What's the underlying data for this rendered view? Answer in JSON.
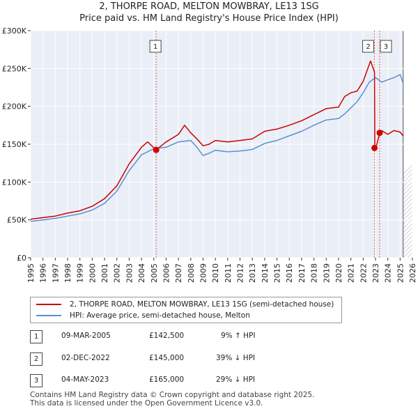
{
  "chart_data": {
    "type": "line",
    "title": "2, THORPE ROAD, MELTON MOWBRAY, LE13 1SG",
    "subtitle": "Price paid vs. HM Land Registry's House Price Index (HPI)",
    "xlabel": "",
    "ylabel": "",
    "xlim": [
      1995,
      2026
    ],
    "ylim": [
      0,
      300000
    ],
    "x_ticks": [
      1995,
      1996,
      1997,
      1998,
      1999,
      2000,
      2001,
      2002,
      2003,
      2004,
      2005,
      2006,
      2007,
      2008,
      2009,
      2010,
      2011,
      2012,
      2013,
      2014,
      2015,
      2016,
      2017,
      2018,
      2019,
      2020,
      2021,
      2022,
      2023,
      2024,
      2025,
      2026
    ],
    "y_ticks": [
      {
        "value": 0,
        "label": "£0"
      },
      {
        "value": 50000,
        "label": "£50K"
      },
      {
        "value": 100000,
        "label": "£100K"
      },
      {
        "value": 150000,
        "label": "£150K"
      },
      {
        "value": 200000,
        "label": "£200K"
      },
      {
        "value": 250000,
        "label": "£250K"
      },
      {
        "value": 300000,
        "label": "£300K"
      }
    ],
    "grid": true,
    "future_hatch_from": 2025.25,
    "series": [
      {
        "name": "2, THORPE ROAD, MELTON MOWBRAY, LE13 1SG (semi-detached house)",
        "color": "#cc0000",
        "x": [
          1995,
          1996,
          1997,
          1998,
          1999,
          2000,
          2001,
          2002,
          2003,
          2004,
          2004.5,
          2005.19,
          2006,
          2007,
          2007.5,
          2008,
          2008.5,
          2009,
          2009.5,
          2010,
          2011,
          2012,
          2013,
          2014,
          2015,
          2016,
          2017,
          2018,
          2019,
          2020,
          2020.5,
          2021,
          2021.5,
          2022,
          2022.6,
          2022.92,
          2022.95,
          2023,
          2023.34,
          2023.5,
          2024,
          2024.5,
          2025,
          2025.25
        ],
        "y": [
          51000,
          53000,
          55000,
          59000,
          62000,
          68000,
          78000,
          95000,
          124000,
          146000,
          153000,
          142500,
          153000,
          163000,
          175000,
          165000,
          157000,
          148000,
          150000,
          155000,
          153000,
          155000,
          157000,
          167000,
          170000,
          175000,
          181000,
          189000,
          197000,
          199000,
          213000,
          218000,
          220000,
          233000,
          260000,
          245000,
          145000,
          143000,
          165000,
          168000,
          163000,
          168000,
          166000,
          161000
        ]
      },
      {
        "name": "HPI: Average price, semi-detached house, Melton",
        "color": "#5b8fd0",
        "x": [
          1995,
          1996,
          1997,
          1998,
          1999,
          2000,
          2001,
          2002,
          2003,
          2004,
          2005,
          2006,
          2007,
          2008,
          2008.5,
          2009,
          2009.5,
          2010,
          2011,
          2012,
          2013,
          2014,
          2015,
          2016,
          2017,
          2018,
          2019,
          2020,
          2020.5,
          2021,
          2021.5,
          2022,
          2022.5,
          2023,
          2023.5,
          2024,
          2024.5,
          2025,
          2025.25
        ],
        "y": [
          48000,
          50000,
          52000,
          55000,
          58000,
          63000,
          72000,
          88000,
          115000,
          136000,
          144000,
          146000,
          153000,
          155000,
          146000,
          135000,
          138000,
          142000,
          140000,
          141000,
          143000,
          151000,
          155000,
          161000,
          167000,
          175000,
          182000,
          184000,
          190000,
          198000,
          206000,
          218000,
          232000,
          238000,
          232000,
          235000,
          238000,
          242000,
          231000
        ]
      }
    ],
    "sales": [
      {
        "label": "1",
        "x": 2005.19,
        "y": 142500
      },
      {
        "label": "2",
        "x": 2022.92,
        "y": 145000
      },
      {
        "label": "3",
        "x": 2023.34,
        "y": 165000
      }
    ]
  },
  "legend": {
    "property_label": "2, THORPE ROAD, MELTON MOWBRAY, LE13 1SG (semi-detached house)",
    "hpi_label": "HPI: Average price, semi-detached house, Melton",
    "property_color": "#cc0000",
    "hpi_color": "#5b8fd0"
  },
  "transactions": [
    {
      "num": "1",
      "date": "09-MAR-2005",
      "price": "£142,500",
      "hpi": "9% ↑ HPI"
    },
    {
      "num": "2",
      "date": "02-DEC-2022",
      "price": "£145,000",
      "hpi": "39% ↓ HPI"
    },
    {
      "num": "3",
      "date": "04-MAY-2023",
      "price": "£165,000",
      "hpi": "29% ↓ HPI"
    }
  ],
  "footer": {
    "line1": "Contains HM Land Registry data © Crown copyright and database right 2025.",
    "line2": "This data is licensed under the Open Government Licence v3.0."
  }
}
